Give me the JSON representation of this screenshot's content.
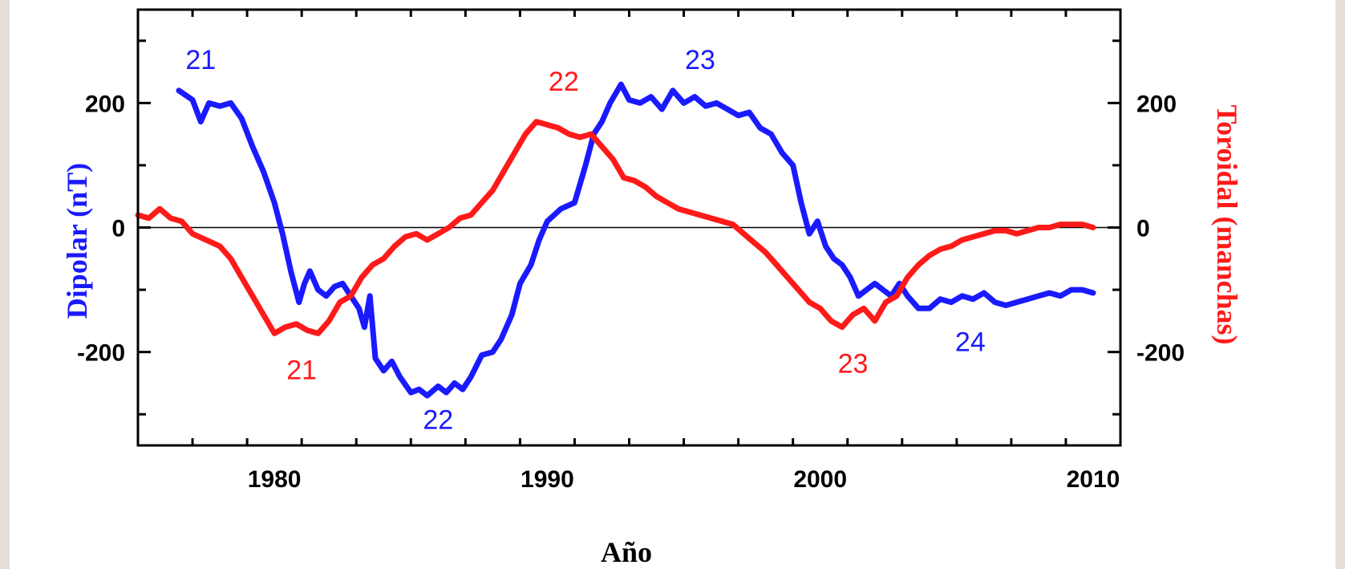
{
  "chart_data": {
    "type": "line",
    "xlabel": "Año",
    "ylabel_left": "Dipolar  (nT)",
    "ylabel_right": "Toroidal (manchas)",
    "xlim": [
      1975,
      2011
    ],
    "ylim_left": [
      -350,
      350
    ],
    "ylim_right": [
      -350,
      350
    ],
    "x_ticks": [
      1980,
      1990,
      2000,
      2010
    ],
    "y_ticks_left": [
      200,
      0,
      -200
    ],
    "y_ticks_right": [
      200,
      0,
      -200
    ],
    "zero_line": true,
    "colors": {
      "dipolar": "#1a1aff",
      "toroidal": "#ff1a1a"
    },
    "series": [
      {
        "key": "dipolar",
        "axis": "left",
        "x": [
          1976.5,
          1977.0,
          1977.3,
          1977.6,
          1978.0,
          1978.4,
          1978.8,
          1979.2,
          1979.6,
          1980.0,
          1980.3,
          1980.6,
          1980.9,
          1981.1,
          1981.3,
          1981.6,
          1981.9,
          1982.2,
          1982.5,
          1982.8,
          1983.1,
          1983.3,
          1983.5,
          1983.7,
          1984.0,
          1984.3,
          1984.6,
          1985.0,
          1985.3,
          1985.6,
          1986.0,
          1986.3,
          1986.6,
          1986.9,
          1987.2,
          1987.6,
          1988.0,
          1988.3,
          1988.7,
          1989.0,
          1989.4,
          1989.7,
          1990.0,
          1990.5,
          1991.0,
          1991.4,
          1991.7,
          1992.0,
          1992.3,
          1992.7,
          1993.0,
          1993.4,
          1993.8,
          1994.2,
          1994.6,
          1995.0,
          1995.4,
          1995.8,
          1996.2,
          1996.6,
          1997.0,
          1997.4,
          1997.8,
          1998.2,
          1998.6,
          1999.0,
          1999.3,
          1999.6,
          1999.9,
          2000.2,
          2000.5,
          2000.8,
          2001.1,
          2001.4,
          2001.7,
          2002.0,
          2002.3,
          2002.6,
          2002.9,
          2003.2,
          2003.6,
          2004.0,
          2004.4,
          2004.8,
          2005.2,
          2005.6,
          2006.0,
          2006.4,
          2006.8,
          2007.2,
          2007.6,
          2008.0,
          2008.4,
          2008.8,
          2009.2,
          2009.6,
          2010.0
        ],
        "y": [
          220,
          205,
          170,
          200,
          195,
          200,
          175,
          130,
          90,
          40,
          -10,
          -70,
          -120,
          -90,
          -70,
          -100,
          -110,
          -95,
          -90,
          -110,
          -130,
          -160,
          -110,
          -210,
          -230,
          -215,
          -240,
          -265,
          -260,
          -270,
          -255,
          -265,
          -250,
          -260,
          -240,
          -205,
          -200,
          -180,
          -140,
          -90,
          -60,
          -20,
          10,
          30,
          40,
          100,
          150,
          170,
          200,
          230,
          205,
          200,
          210,
          190,
          220,
          200,
          210,
          195,
          200,
          190,
          180,
          185,
          160,
          150,
          120,
          100,
          40,
          -10,
          10,
          -30,
          -50,
          -60,
          -80,
          -110,
          -100,
          -90,
          -100,
          -110,
          -90,
          -110,
          -130,
          -130,
          -115,
          -120,
          -110,
          -115,
          -105,
          -120,
          -125,
          -120,
          -115,
          -110,
          -105,
          -110,
          -100,
          -100,
          -105
        ]
      },
      {
        "key": "toroidal",
        "axis": "right",
        "x": [
          1975.0,
          1975.4,
          1975.8,
          1976.2,
          1976.6,
          1977.0,
          1977.5,
          1978.0,
          1978.4,
          1978.8,
          1979.2,
          1979.6,
          1980.0,
          1980.4,
          1980.8,
          1981.2,
          1981.6,
          1982.0,
          1982.4,
          1982.8,
          1983.2,
          1983.6,
          1984.0,
          1984.4,
          1984.8,
          1985.2,
          1985.6,
          1986.0,
          1986.4,
          1986.8,
          1987.2,
          1987.6,
          1988.0,
          1988.4,
          1988.8,
          1989.2,
          1989.6,
          1990.0,
          1990.4,
          1990.8,
          1991.2,
          1991.6,
          1992.0,
          1992.4,
          1992.8,
          1993.2,
          1993.6,
          1994.0,
          1994.4,
          1994.8,
          1995.2,
          1995.6,
          1996.0,
          1996.4,
          1996.8,
          1997.2,
          1997.6,
          1998.0,
          1998.4,
          1998.8,
          1999.2,
          1999.6,
          2000.0,
          2000.4,
          2000.8,
          2001.2,
          2001.6,
          2002.0,
          2002.4,
          2002.8,
          2003.2,
          2003.6,
          2004.0,
          2004.4,
          2004.8,
          2005.2,
          2005.6,
          2006.0,
          2006.4,
          2006.8,
          2007.2,
          2007.6,
          2008.0,
          2008.4,
          2008.8,
          2009.2,
          2009.6,
          2010.0
        ],
        "y": [
          20,
          15,
          30,
          15,
          10,
          -10,
          -20,
          -30,
          -50,
          -80,
          -110,
          -140,
          -170,
          -160,
          -155,
          -165,
          -170,
          -150,
          -120,
          -110,
          -80,
          -60,
          -50,
          -30,
          -15,
          -10,
          -20,
          -10,
          0,
          15,
          20,
          40,
          60,
          90,
          120,
          150,
          170,
          165,
          160,
          150,
          145,
          150,
          130,
          110,
          80,
          75,
          65,
          50,
          40,
          30,
          25,
          20,
          15,
          10,
          5,
          -10,
          -25,
          -40,
          -60,
          -80,
          -100,
          -120,
          -130,
          -150,
          -160,
          -140,
          -130,
          -150,
          -120,
          -110,
          -80,
          -60,
          -45,
          -35,
          -30,
          -20,
          -15,
          -10,
          -5,
          -5,
          -10,
          -5,
          0,
          0,
          5,
          5,
          5,
          0
        ]
      }
    ],
    "annotations": [
      {
        "text": "21",
        "color": "dipolar",
        "x": 1977.3,
        "y": 270
      },
      {
        "text": "22",
        "color": "toroidal",
        "x": 1990.6,
        "y": 235
      },
      {
        "text": "23",
        "color": "dipolar",
        "x": 1995.6,
        "y": 270
      },
      {
        "text": "21",
        "color": "toroidal",
        "x": 1981.0,
        "y": -228
      },
      {
        "text": "22",
        "color": "dipolar",
        "x": 1986.0,
        "y": -308
      },
      {
        "text": "23",
        "color": "toroidal",
        "x": 2001.2,
        "y": -218
      },
      {
        "text": "24",
        "color": "dipolar",
        "x": 2005.5,
        "y": -183
      }
    ]
  }
}
